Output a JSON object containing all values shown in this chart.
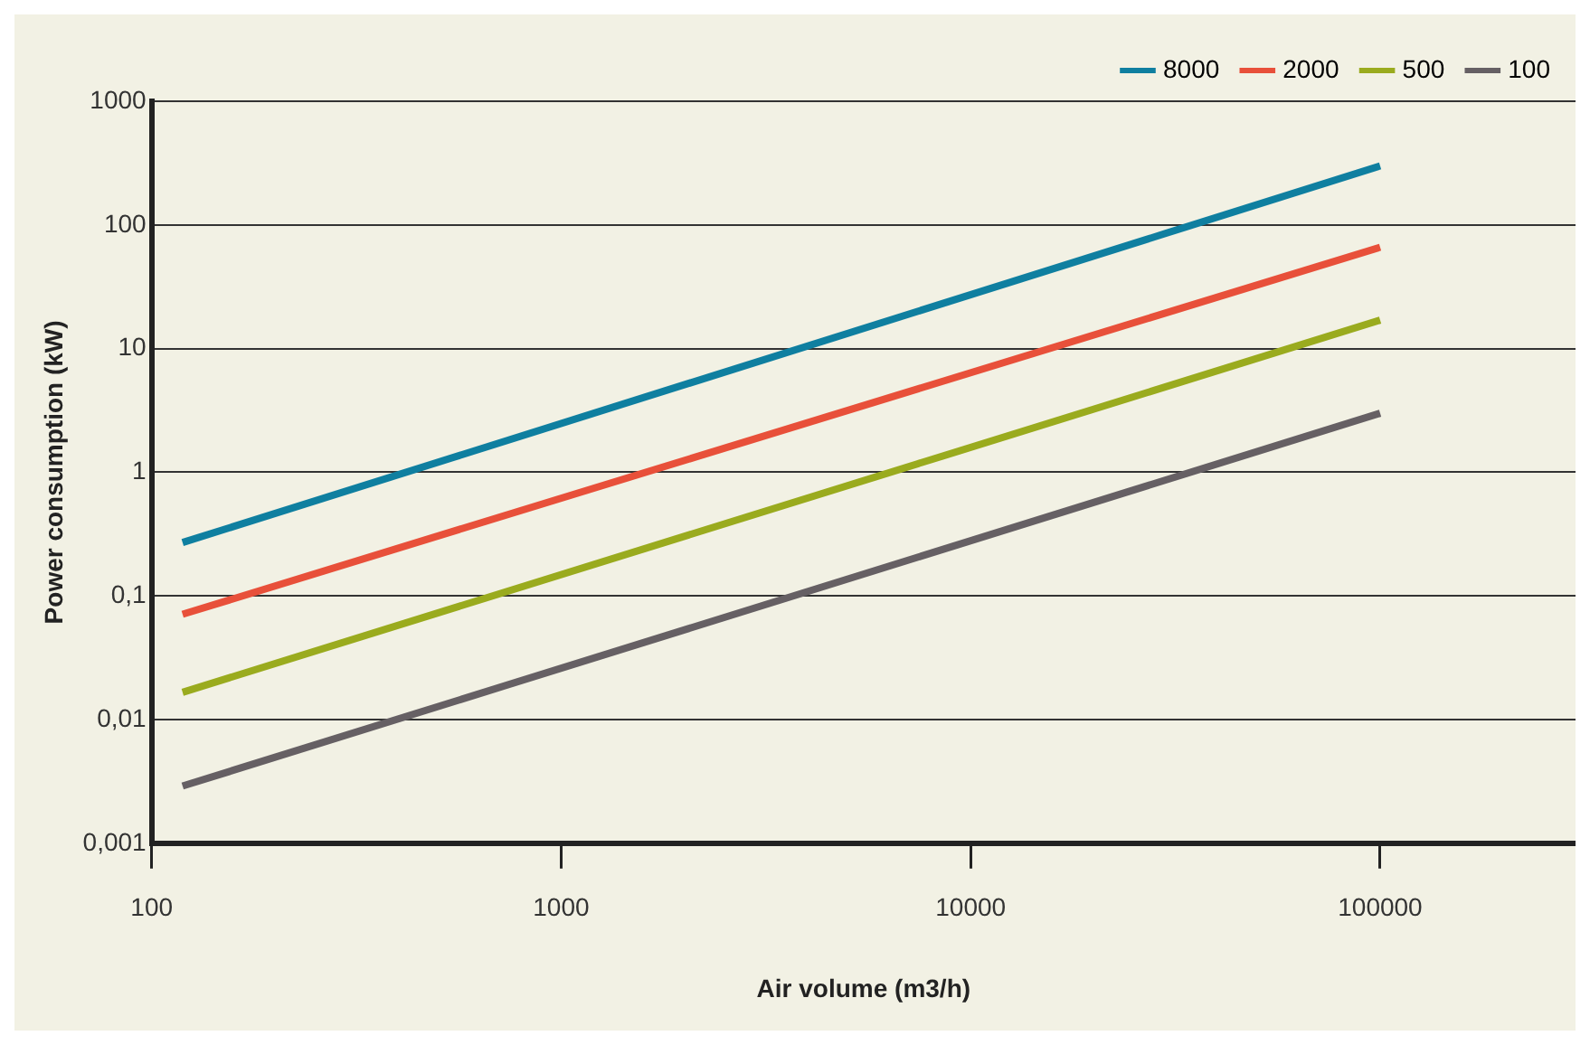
{
  "chart_data": {
    "type": "line",
    "xlabel": "Air volume (m3/h)",
    "ylabel": "Power consumption (kW)",
    "log": "xy",
    "grid": "y",
    "legend": "top right",
    "marker": "none",
    "line_style": "solid",
    "xlim": [
      100,
      300000
    ],
    "xticks": [
      100,
      1000,
      10000,
      100000
    ],
    "ylim": [
      0.001,
      1000
    ],
    "yticks": [
      {
        "value": 0.001,
        "label": "0,001"
      },
      {
        "value": 0.01,
        "label": "0,01"
      },
      {
        "value": 0.1,
        "label": "0,1"
      },
      1,
      10,
      100,
      1000
    ],
    "x": [
      119,
      100000
    ],
    "series": [
      {
        "name": "8000",
        "color": "#0f7fa0",
        "values": [
          0.27,
          300
        ]
      },
      {
        "name": "2000",
        "color": "#e8503a",
        "values": [
          0.071,
          66
        ]
      },
      {
        "name": "500",
        "color": "#9aab1e",
        "values": [
          0.0166,
          17
        ]
      },
      {
        "name": "100",
        "color": "#666064",
        "values": [
          0.0029,
          3
        ]
      }
    ]
  }
}
